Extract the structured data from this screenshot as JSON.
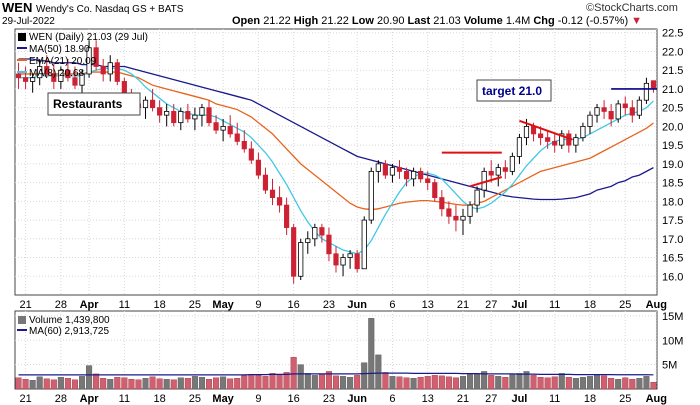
{
  "header": {
    "symbol": "WEN",
    "description": "Wendy's Co. Nasdaq GS + BATS",
    "date": "29-Jul-2022",
    "open_label": "Open",
    "open": "21.22",
    "high_label": "High",
    "high": "21.22",
    "low_label": "Low",
    "low": "20.90",
    "last_label": "Last",
    "last": "21.03",
    "volume_label": "Volume",
    "volume": "1.4M",
    "chg_label": "Chg",
    "chg": "-0.12 (-0.57%)",
    "copyright": "©StockCharts.com"
  },
  "legend": {
    "price": "WEN (Daily) 21.03 (29 Jul)",
    "ma50": "MA(50) 18.90",
    "ema21": "EMA(21) 20.09",
    "ma8": "MA(8) 20.68",
    "volume": "Volume 1,439,800",
    "vol_ma60": "MA(60) 2,913,725"
  },
  "annotations": {
    "restaurants": "Restaurants",
    "target": "target 21.0"
  },
  "colors": {
    "up": "#000000",
    "down": "#cc2233",
    "ma50": "#1a1a8c",
    "ema21": "#e8641e",
    "ma8": "#41c8e6",
    "target_line": "#00008b",
    "trend_line": "#e01010",
    "vol_ma": "#1a1a8c"
  },
  "chart_data": {
    "type": "candlestick",
    "ylim": [
      15.5,
      22.6
    ],
    "y_ticks": [
      "16.0",
      "16.5",
      "17.0",
      "17.5",
      "18.0",
      "18.5",
      "19.0",
      "19.5",
      "20.0",
      "20.5",
      "21.0",
      "21.5",
      "22.0",
      "22.5"
    ],
    "x_ticks": [
      "21",
      "28",
      "Apr",
      "11",
      "18",
      "25",
      "May",
      "9",
      "16",
      "23",
      "Jun",
      "6",
      "13",
      "21",
      "27",
      "Jul",
      "11",
      "18",
      "25",
      "Aug"
    ],
    "volume_ticks": [
      "5M",
      "10M",
      "15M"
    ],
    "volume_ylim": [
      0,
      16
    ],
    "target_level": 21.0,
    "ohlc": [
      [
        21.4,
        21.7,
        21.0,
        21.3
      ],
      [
        21.3,
        21.6,
        21.0,
        21.2
      ],
      [
        21.2,
        21.4,
        20.9,
        21.3
      ],
      [
        21.3,
        21.8,
        21.1,
        21.6
      ],
      [
        21.6,
        21.9,
        21.3,
        21.4
      ],
      [
        21.4,
        21.7,
        21.0,
        21.2
      ],
      [
        21.2,
        21.6,
        21.0,
        21.5
      ],
      [
        21.5,
        21.8,
        21.2,
        21.3
      ],
      [
        21.3,
        21.6,
        21.0,
        21.1
      ],
      [
        21.1,
        21.5,
        20.9,
        21.4
      ],
      [
        21.4,
        22.3,
        21.3,
        22.1
      ],
      [
        22.1,
        22.3,
        21.5,
        21.6
      ],
      [
        21.6,
        21.8,
        21.2,
        21.4
      ],
      [
        21.4,
        21.9,
        21.2,
        21.7
      ],
      [
        21.7,
        21.8,
        21.1,
        21.2
      ],
      [
        21.2,
        21.3,
        20.6,
        20.8
      ],
      [
        20.8,
        21.0,
        20.4,
        20.6
      ],
      [
        20.6,
        20.9,
        20.3,
        20.5
      ],
      [
        20.5,
        20.8,
        20.2,
        20.7
      ],
      [
        20.7,
        21.0,
        20.4,
        20.5
      ],
      [
        20.5,
        20.7,
        20.1,
        20.3
      ],
      [
        20.3,
        20.6,
        20.0,
        20.4
      ],
      [
        20.4,
        20.6,
        20.0,
        20.1
      ],
      [
        20.1,
        20.5,
        19.9,
        20.4
      ],
      [
        20.4,
        20.6,
        20.1,
        20.2
      ],
      [
        20.2,
        20.5,
        19.9,
        20.3
      ],
      [
        20.3,
        20.6,
        20.0,
        20.5
      ],
      [
        20.5,
        20.7,
        20.0,
        20.1
      ],
      [
        20.1,
        20.3,
        19.8,
        19.9
      ],
      [
        19.9,
        20.2,
        19.6,
        20.0
      ],
      [
        20.0,
        20.3,
        19.7,
        19.8
      ],
      [
        19.8,
        20.1,
        19.5,
        19.6
      ],
      [
        19.6,
        19.9,
        19.3,
        19.4
      ],
      [
        19.4,
        19.6,
        19.0,
        19.1
      ],
      [
        19.1,
        19.3,
        18.6,
        18.7
      ],
      [
        18.7,
        18.9,
        18.2,
        18.3
      ],
      [
        18.3,
        18.6,
        17.9,
        18.1
      ],
      [
        18.1,
        18.4,
        17.7,
        17.9
      ],
      [
        17.9,
        18.1,
        17.1,
        17.3
      ],
      [
        17.3,
        17.4,
        15.8,
        16.0
      ],
      [
        16.0,
        17.0,
        15.9,
        16.9
      ],
      [
        16.9,
        17.2,
        16.6,
        17.0
      ],
      [
        17.0,
        17.4,
        16.8,
        17.3
      ],
      [
        17.3,
        17.4,
        16.9,
        17.1
      ],
      [
        17.1,
        17.3,
        16.4,
        16.6
      ],
      [
        16.6,
        16.8,
        16.1,
        16.3
      ],
      [
        16.3,
        16.6,
        16.0,
        16.5
      ],
      [
        16.5,
        16.7,
        16.2,
        16.6
      ],
      [
        16.6,
        16.7,
        16.1,
        16.2
      ],
      [
        16.2,
        17.6,
        16.2,
        17.5
      ],
      [
        17.5,
        18.9,
        17.4,
        18.8
      ],
      [
        18.8,
        19.1,
        18.5,
        19.0
      ],
      [
        19.0,
        19.1,
        18.6,
        18.7
      ],
      [
        18.7,
        19.0,
        18.5,
        18.9
      ],
      [
        18.9,
        19.1,
        18.6,
        18.8
      ],
      [
        18.8,
        18.9,
        18.4,
        18.6
      ],
      [
        18.6,
        18.9,
        18.4,
        18.8
      ],
      [
        18.8,
        18.9,
        18.5,
        18.6
      ],
      [
        18.6,
        18.8,
        18.3,
        18.5
      ],
      [
        18.5,
        18.6,
        18.0,
        18.1
      ],
      [
        18.1,
        18.3,
        17.6,
        17.8
      ],
      [
        17.8,
        18.0,
        17.4,
        17.6
      ],
      [
        17.6,
        17.9,
        17.2,
        17.5
      ],
      [
        17.5,
        17.8,
        17.1,
        17.6
      ],
      [
        17.6,
        18.0,
        17.4,
        17.9
      ],
      [
        17.9,
        18.4,
        17.7,
        18.3
      ],
      [
        18.3,
        18.9,
        18.1,
        18.8
      ],
      [
        18.8,
        19.1,
        18.5,
        18.7
      ],
      [
        18.7,
        19.0,
        18.4,
        18.9
      ],
      [
        18.9,
        19.1,
        18.6,
        18.8
      ],
      [
        18.8,
        19.3,
        18.7,
        19.2
      ],
      [
        19.2,
        19.8,
        19.0,
        19.7
      ],
      [
        19.7,
        20.2,
        19.5,
        20.0
      ],
      [
        20.0,
        20.1,
        19.6,
        19.8
      ],
      [
        19.8,
        20.0,
        19.5,
        19.7
      ],
      [
        19.7,
        19.9,
        19.4,
        19.6
      ],
      [
        19.6,
        19.8,
        19.3,
        19.5
      ],
      [
        19.5,
        19.9,
        19.4,
        19.8
      ],
      [
        19.8,
        19.9,
        19.3,
        19.5
      ],
      [
        19.5,
        19.8,
        19.3,
        19.7
      ],
      [
        19.7,
        20.1,
        19.6,
        20.0
      ],
      [
        20.0,
        20.4,
        19.8,
        20.3
      ],
      [
        20.3,
        20.6,
        20.1,
        20.5
      ],
      [
        20.5,
        20.7,
        20.2,
        20.4
      ],
      [
        20.4,
        20.6,
        20.0,
        20.2
      ],
      [
        20.2,
        20.7,
        20.1,
        20.6
      ],
      [
        20.6,
        20.8,
        20.3,
        20.5
      ],
      [
        20.5,
        20.7,
        20.1,
        20.3
      ],
      [
        20.3,
        20.8,
        20.2,
        20.7
      ],
      [
        20.7,
        21.3,
        20.6,
        21.15
      ],
      [
        21.22,
        21.22,
        20.9,
        21.03
      ]
    ],
    "ma50": [
      21.8,
      21.8,
      21.8,
      21.75,
      21.75,
      21.7,
      21.7,
      21.7,
      21.7,
      21.65,
      21.65,
      21.65,
      21.6,
      21.6,
      21.6,
      21.6,
      21.55,
      21.5,
      21.45,
      21.4,
      21.35,
      21.3,
      21.25,
      21.2,
      21.15,
      21.1,
      21.05,
      21.0,
      20.95,
      20.9,
      20.85,
      20.8,
      20.75,
      20.7,
      20.6,
      20.5,
      20.4,
      20.3,
      20.2,
      20.1,
      20.0,
      19.9,
      19.8,
      19.7,
      19.6,
      19.5,
      19.4,
      19.3,
      19.2,
      19.15,
      19.1,
      19.05,
      19.0,
      18.95,
      18.9,
      18.85,
      18.8,
      18.75,
      18.7,
      18.65,
      18.6,
      18.55,
      18.5,
      18.45,
      18.4,
      18.35,
      18.3,
      18.25,
      18.2,
      18.15,
      18.12,
      18.1,
      18.08,
      18.06,
      18.05,
      18.05,
      18.05,
      18.06,
      18.08,
      18.1,
      18.15,
      18.2,
      18.3,
      18.35,
      18.4,
      18.5,
      18.55,
      18.65,
      18.7,
      18.8,
      18.9
    ],
    "ema21": [
      21.4,
      21.4,
      21.4,
      21.4,
      21.4,
      21.4,
      21.4,
      21.4,
      21.4,
      21.4,
      21.45,
      21.45,
      21.45,
      21.45,
      21.45,
      21.4,
      21.35,
      21.3,
      21.2,
      21.1,
      21.05,
      21.0,
      20.95,
      20.9,
      20.85,
      20.8,
      20.75,
      20.7,
      20.6,
      20.55,
      20.5,
      20.45,
      20.35,
      20.25,
      20.1,
      19.95,
      19.8,
      19.6,
      19.4,
      19.2,
      19.0,
      18.85,
      18.7,
      18.55,
      18.4,
      18.25,
      18.1,
      17.95,
      17.85,
      17.8,
      17.78,
      17.8,
      17.85,
      17.9,
      17.95,
      17.98,
      18.0,
      18.02,
      18.02,
      18.0,
      17.98,
      17.95,
      17.92,
      17.9,
      17.9,
      17.95,
      18.0,
      18.1,
      18.2,
      18.3,
      18.4,
      18.5,
      18.6,
      18.7,
      18.8,
      18.85,
      18.9,
      18.95,
      19.0,
      19.05,
      19.1,
      19.15,
      19.25,
      19.35,
      19.45,
      19.55,
      19.65,
      19.75,
      19.85,
      19.95,
      20.09
    ],
    "ma8": [
      21.3,
      21.3,
      21.3,
      21.35,
      21.35,
      21.35,
      21.35,
      21.35,
      21.35,
      21.35,
      21.45,
      21.5,
      21.55,
      21.55,
      21.55,
      21.5,
      21.4,
      21.25,
      21.05,
      20.9,
      20.75,
      20.6,
      20.5,
      20.4,
      20.35,
      20.3,
      20.3,
      20.3,
      20.25,
      20.15,
      20.05,
      19.95,
      19.85,
      19.7,
      19.5,
      19.3,
      19.05,
      18.75,
      18.45,
      18.1,
      17.75,
      17.45,
      17.2,
      17.0,
      16.9,
      16.8,
      16.7,
      16.65,
      16.6,
      16.7,
      16.95,
      17.3,
      17.65,
      17.95,
      18.25,
      18.5,
      18.65,
      18.75,
      18.75,
      18.7,
      18.6,
      18.4,
      18.2,
      18.0,
      17.85,
      17.8,
      17.85,
      17.95,
      18.1,
      18.25,
      18.45,
      18.7,
      18.95,
      19.15,
      19.35,
      19.5,
      19.6,
      19.65,
      19.65,
      19.65,
      19.7,
      19.8,
      19.9,
      20.0,
      20.1,
      20.2,
      20.3,
      20.35,
      20.4,
      20.5,
      20.68
    ],
    "volume": [
      2.3,
      2.0,
      1.8,
      2.5,
      2.1,
      1.9,
      2.4,
      2.2,
      1.9,
      2.6,
      4.8,
      3.1,
      2.2,
      2.0,
      2.4,
      2.3,
      2.0,
      1.9,
      2.2,
      2.5,
      2.1,
      2.0,
      1.9,
      2.3,
      2.2,
      2.6,
      2.4,
      2.0,
      2.3,
      2.5,
      2.1,
      2.2,
      2.7,
      3.0,
      2.8,
      2.6,
      3.2,
      2.9,
      3.4,
      6.5,
      5.0,
      3.2,
      2.8,
      3.0,
      3.6,
      2.7,
      2.6,
      2.4,
      2.8,
      5.4,
      14.5,
      7.0,
      3.4,
      2.6,
      2.5,
      2.3,
      2.2,
      2.4,
      2.6,
      2.8,
      2.7,
      2.5,
      2.3,
      2.6,
      3.0,
      3.1,
      3.6,
      2.8,
      2.6,
      2.4,
      2.9,
      3.2,
      3.6,
      2.8,
      2.4,
      2.3,
      2.5,
      3.2,
      2.4,
      2.2,
      2.4,
      2.6,
      3.0,
      2.7,
      2.2,
      2.0,
      2.3,
      2.0,
      2.2,
      2.6,
      1.4
    ],
    "volume_ma60": [
      2.9,
      2.9,
      2.9,
      2.9,
      2.9,
      2.9,
      2.9,
      2.9,
      2.9,
      2.9,
      2.9,
      2.9,
      2.9,
      2.9,
      2.9,
      2.9,
      2.9,
      2.9,
      2.9,
      2.9,
      2.9,
      2.9,
      2.9,
      2.9,
      2.9,
      2.9,
      2.9,
      2.9,
      2.9,
      2.9,
      2.9,
      2.9,
      2.9,
      2.95,
      2.95,
      2.95,
      3.0,
      3.0,
      3.0,
      3.1,
      3.1,
      3.1,
      3.1,
      3.1,
      3.1,
      3.1,
      3.1,
      3.1,
      3.1,
      3.15,
      3.2,
      3.25,
      3.25,
      3.25,
      3.25,
      3.25,
      3.2,
      3.2,
      3.2,
      3.2,
      3.2,
      3.2,
      3.2,
      3.15,
      3.15,
      3.15,
      3.1,
      3.1,
      3.1,
      3.1,
      3.1,
      3.05,
      3.05,
      3.05,
      3.0,
      3.0,
      3.0,
      3.0,
      3.0,
      2.95,
      2.95,
      2.95,
      2.95,
      2.95,
      2.95,
      2.92,
      2.92,
      2.92,
      2.92,
      2.92,
      2.91
    ]
  }
}
